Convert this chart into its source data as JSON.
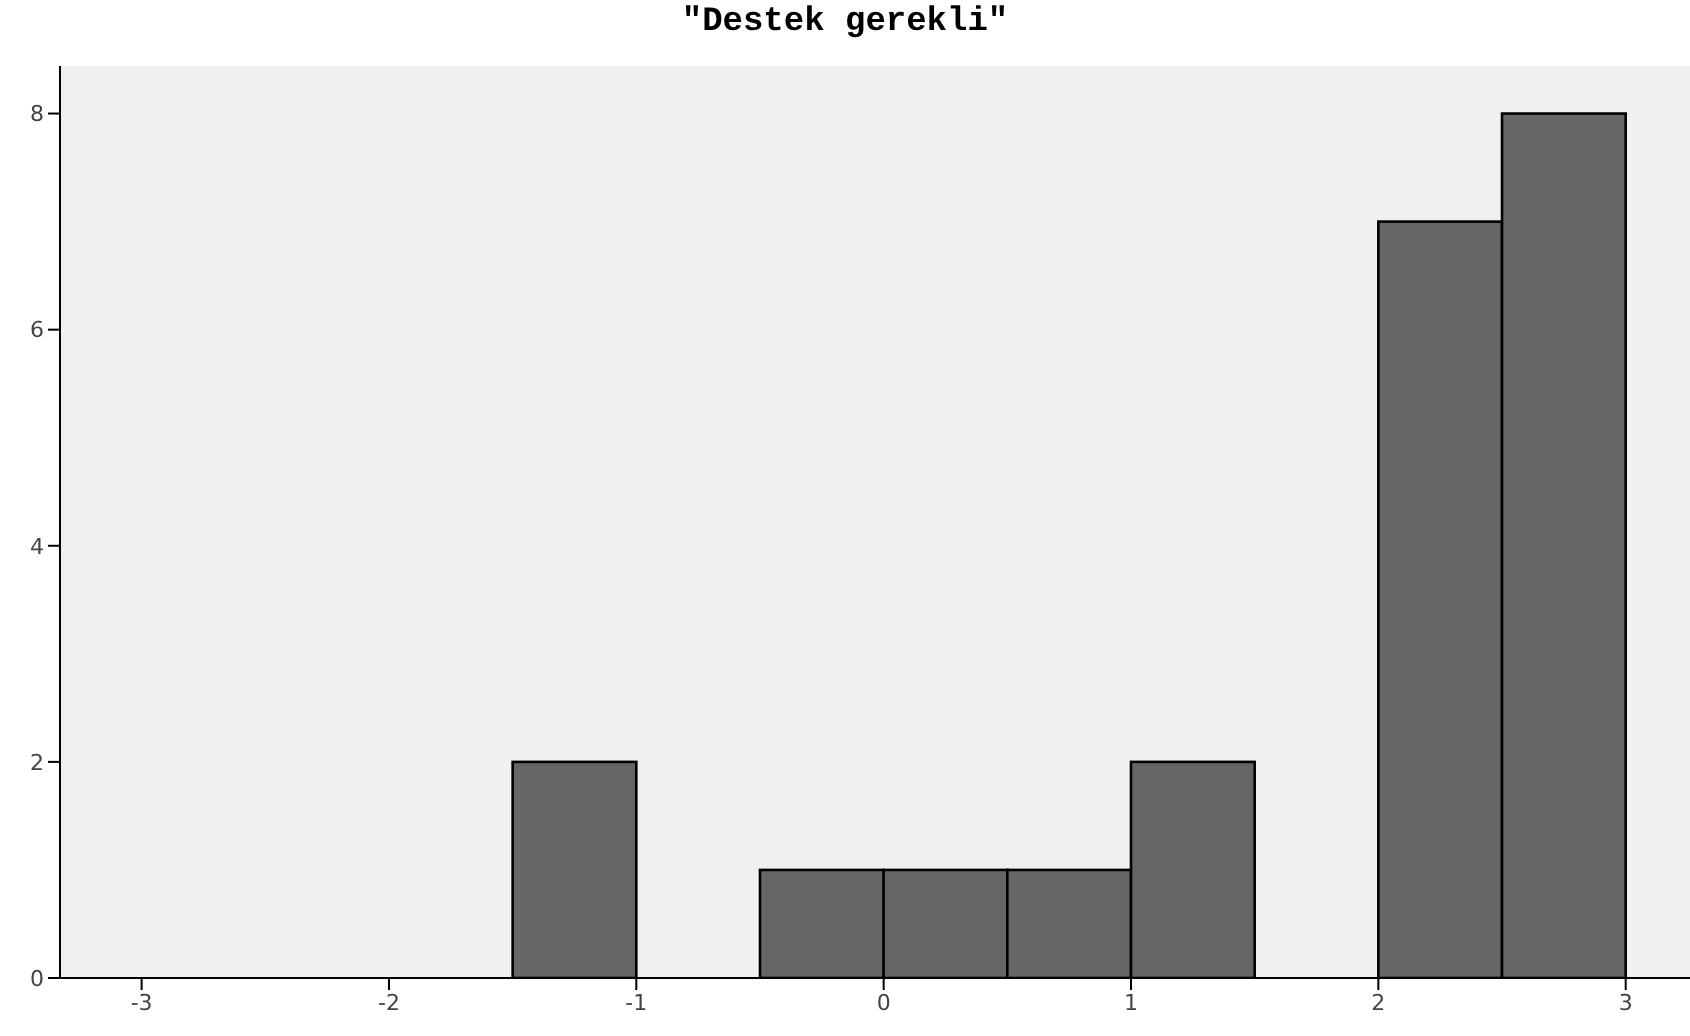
{
  "chart_data": {
    "type": "histogram",
    "title": "\"Destek gerekli\"",
    "bins": [
      -1.5,
      -1,
      -0.5,
      0,
      0.5,
      1,
      1.5,
      2,
      2.5,
      3
    ],
    "values": [
      2,
      0,
      1,
      1,
      1,
      2,
      0,
      7,
      8
    ],
    "color": "#666666",
    "xlim": [
      -3.33,
      3.26
    ],
    "xticks": [
      -3,
      -2,
      -1,
      0,
      1,
      2,
      3
    ],
    "ylim": [
      0,
      8.44
    ],
    "yticks": [
      0,
      2,
      4,
      6,
      8
    ],
    "grid": false
  }
}
